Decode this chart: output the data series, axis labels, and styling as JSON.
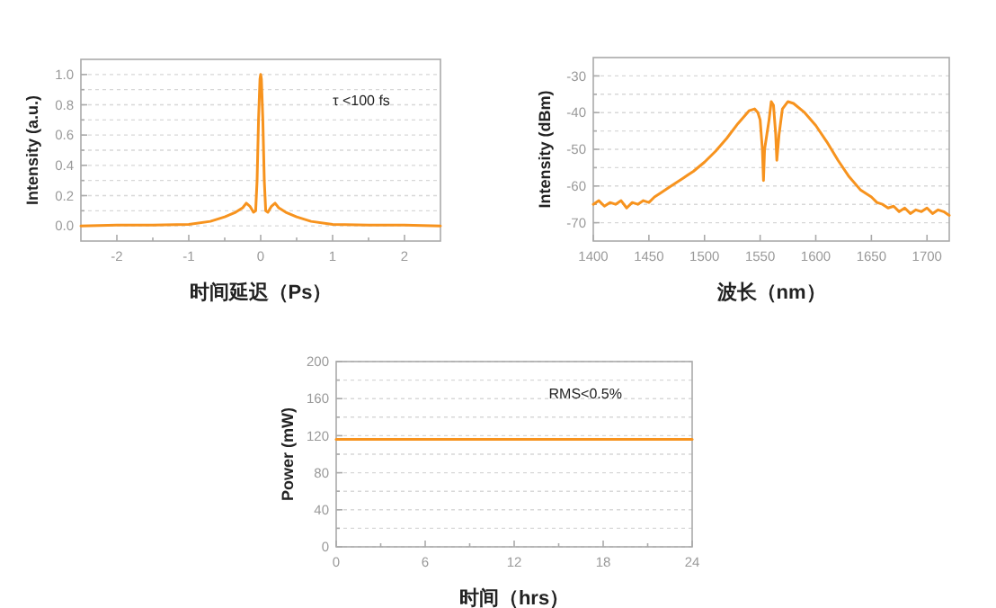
{
  "chart_data": [
    {
      "type": "line",
      "xlabel": "时间延迟（Ps）",
      "ylabel": "Intensity (a.u.)",
      "annotations": [
        "τ <100 fs"
      ],
      "xlim": [
        -2.5,
        2.5
      ],
      "ylim": [
        -0.1,
        1.1
      ],
      "xticks": [
        -2,
        {
          "value": -1.5,
          "label": null
        },
        -1,
        {
          "value": -0.5,
          "label": null
        },
        0,
        {
          "value": 0.5,
          "label": null
        },
        1,
        {
          "value": 1.5,
          "label": null
        },
        2
      ],
      "yticks": [
        {
          "value": 0,
          "label": "0.0"
        },
        {
          "value": 0.1,
          "label": null
        },
        0.2,
        {
          "value": 0.3,
          "label": null
        },
        0.4,
        {
          "value": 0.5,
          "label": null
        },
        0.6,
        {
          "value": 0.7,
          "label": null
        },
        0.8,
        {
          "value": 0.9,
          "label": null
        },
        {
          "value": 1,
          "label": "1.0"
        }
      ],
      "grid": "y",
      "series": [
        {
          "color": "#f7931e",
          "x": [
            -2.5,
            -2,
            -1.5,
            -1,
            -0.7,
            -0.5,
            -0.35,
            -0.25,
            -0.2,
            -0.15,
            -0.1,
            -0.07,
            -0.05,
            -0.03,
            -0.01,
            0,
            0.01,
            0.03,
            0.05,
            0.07,
            0.1,
            0.15,
            0.2,
            0.25,
            0.35,
            0.5,
            0.7,
            1,
            1.5,
            2,
            2.5
          ],
          "values": [
            0,
            0.005,
            0.005,
            0.01,
            0.03,
            0.06,
            0.09,
            0.12,
            0.15,
            0.13,
            0.09,
            0.1,
            0.3,
            0.7,
            0.97,
            1,
            0.97,
            0.7,
            0.3,
            0.1,
            0.09,
            0.13,
            0.15,
            0.12,
            0.09,
            0.06,
            0.03,
            0.01,
            0.005,
            0.005,
            0
          ]
        }
      ]
    },
    {
      "type": "line",
      "xlabel": "波长（nm）",
      "ylabel": "Intensity (dBm)",
      "xlim": [
        1400,
        1720
      ],
      "ylim": [
        -75,
        -25
      ],
      "xticks": [
        1400,
        1450,
        1500,
        1550,
        1600,
        1650,
        1700
      ],
      "yticks": [
        -70,
        {
          "value": -65,
          "label": null
        },
        -60,
        {
          "value": -55,
          "label": null
        },
        -50,
        {
          "value": -45,
          "label": null
        },
        -40,
        {
          "value": -35,
          "label": null
        },
        -30
      ],
      "grid": "y",
      "series": [
        {
          "color": "#f7931e",
          "x": [
            1400,
            1405,
            1410,
            1415,
            1420,
            1425,
            1430,
            1435,
            1440,
            1445,
            1450,
            1455,
            1460,
            1470,
            1480,
            1490,
            1500,
            1510,
            1520,
            1530,
            1540,
            1545,
            1548,
            1550,
            1552,
            1553,
            1554,
            1556,
            1558,
            1560,
            1562,
            1564,
            1565,
            1567,
            1570,
            1575,
            1580,
            1590,
            1600,
            1610,
            1620,
            1630,
            1640,
            1650,
            1655,
            1660,
            1665,
            1670,
            1675,
            1680,
            1685,
            1690,
            1695,
            1700,
            1705,
            1710,
            1715,
            1720
          ],
          "values": [
            -65,
            -64,
            -65.5,
            -64.5,
            -65,
            -64,
            -66,
            -64.5,
            -65,
            -64,
            -64.5,
            -63,
            -62,
            -60,
            -58,
            -56,
            -53.5,
            -50.5,
            -47,
            -43,
            -39.5,
            -39,
            -40,
            -42,
            -50,
            -58.5,
            -50,
            -46,
            -42,
            -37,
            -38,
            -46,
            -53,
            -46,
            -39,
            -37,
            -37.5,
            -40,
            -43.5,
            -48,
            -53,
            -57.5,
            -61,
            -63,
            -64.5,
            -65,
            -66,
            -65.5,
            -67,
            -66,
            -67.5,
            -66.5,
            -67,
            -66,
            -67.5,
            -66.5,
            -67,
            -68
          ]
        }
      ]
    },
    {
      "type": "line",
      "xlabel": "时间（hrs）",
      "ylabel": "Power (mW)",
      "annotations": [
        "RMS<0.5%"
      ],
      "xlim": [
        0,
        24
      ],
      "ylim": [
        0,
        200
      ],
      "xticks": [
        0,
        {
          "value": 3,
          "label": null
        },
        6,
        {
          "value": 9,
          "label": null
        },
        12,
        {
          "value": 15,
          "label": null
        },
        18,
        {
          "value": 21,
          "label": null
        },
        24
      ],
      "yticks": [
        0,
        {
          "value": 20,
          "label": null
        },
        40,
        {
          "value": 60,
          "label": null
        },
        80,
        {
          "value": 100,
          "label": null
        },
        120,
        {
          "value": 140,
          "label": null
        },
        160,
        {
          "value": 180,
          "label": null
        },
        200
      ],
      "grid": "y",
      "series": [
        {
          "color": "#f7931e",
          "x": [
            0,
            6,
            12,
            18,
            24
          ],
          "values": [
            116,
            116,
            116,
            116,
            116
          ]
        }
      ]
    }
  ]
}
